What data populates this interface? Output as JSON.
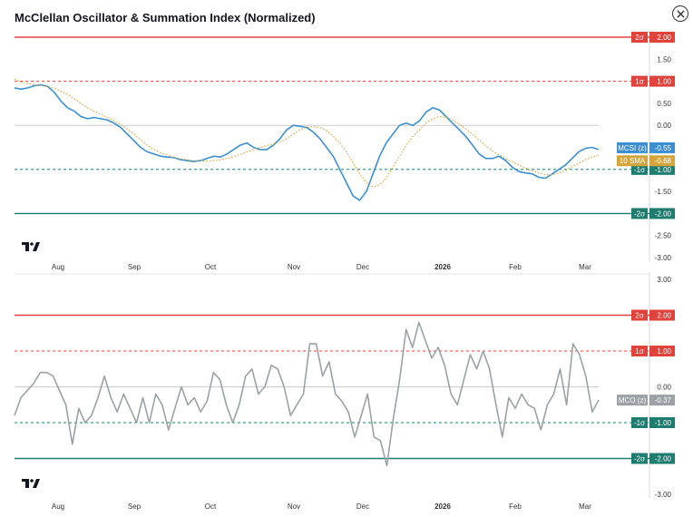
{
  "title": "McClellan Oscillator & Summation Index (Normalized)",
  "close_icon": "close-icon",
  "colors": {
    "red": "#e0433b",
    "teal": "#1e7d6f",
    "mcsi": "#3b8fd1",
    "sma": "#d4a53a",
    "mco": "#9aa2a6",
    "zero": "#cccccc"
  },
  "x_labels": [
    "Aug",
    "Sep",
    "Oct",
    "Nov",
    "Dec",
    "2026",
    "Feb",
    "Mar"
  ],
  "chart_data": [
    {
      "type": "line",
      "name": "McClellan Summation Index",
      "ylim": [
        -3.0,
        2.5
      ],
      "y_ticks": [
        "2.00",
        "1.50",
        "1.00",
        "0.50",
        "0.00",
        "-0.50",
        "-1.00",
        "-1.50",
        "-2.00",
        "-2.50",
        "-3.00"
      ],
      "bands": [
        {
          "label": "2σ",
          "value": 2.0,
          "text": "2.00",
          "color": "red",
          "style": "solid"
        },
        {
          "label": "1σ",
          "value": 1.0,
          "text": "1.00",
          "color": "red",
          "style": "dashed"
        },
        {
          "label": "-1σ",
          "value": -1.0,
          "text": "-1.00",
          "color": "teal",
          "style": "dashed"
        },
        {
          "label": "-2σ",
          "value": -2.0,
          "text": "-2.00",
          "color": "teal",
          "style": "solid"
        }
      ],
      "tags": [
        {
          "label": "MCSI (z)",
          "text": "-0.55",
          "value": -0.55,
          "color": "mcsi"
        },
        {
          "label": "10 SMA",
          "text": "-0.68",
          "value": -0.68,
          "color": "sma"
        }
      ],
      "series": [
        {
          "name": "MCSI (z)",
          "color": "mcsi",
          "style": "solid",
          "values": [
            0.85,
            0.82,
            0.85,
            0.9,
            0.92,
            0.88,
            0.75,
            0.55,
            0.4,
            0.32,
            0.2,
            0.15,
            0.18,
            0.15,
            0.12,
            0.05,
            -0.05,
            -0.2,
            -0.35,
            -0.5,
            -0.6,
            -0.65,
            -0.7,
            -0.72,
            -0.73,
            -0.78,
            -0.8,
            -0.82,
            -0.8,
            -0.75,
            -0.7,
            -0.72,
            -0.65,
            -0.55,
            -0.45,
            -0.4,
            -0.5,
            -0.55,
            -0.55,
            -0.45,
            -0.3,
            -0.1,
            0.0,
            -0.02,
            -0.05,
            -0.15,
            -0.3,
            -0.5,
            -0.7,
            -1.0,
            -1.3,
            -1.6,
            -1.7,
            -1.5,
            -1.1,
            -0.7,
            -0.4,
            -0.2,
            0.0,
            0.05,
            0.0,
            0.1,
            0.3,
            0.4,
            0.35,
            0.2,
            0.05,
            -0.1,
            -0.25,
            -0.45,
            -0.65,
            -0.75,
            -0.75,
            -0.7,
            -0.8,
            -0.95,
            -1.05,
            -1.08,
            -1.1,
            -1.18,
            -1.2,
            -1.1,
            -1.0,
            -0.9,
            -0.75,
            -0.6,
            -0.52,
            -0.5,
            -0.55
          ]
        },
        {
          "name": "10 SMA",
          "color": "sma",
          "style": "dotted",
          "values": [
            1.05,
            0.98,
            0.95,
            0.92,
            0.9,
            0.88,
            0.84,
            0.78,
            0.7,
            0.6,
            0.5,
            0.4,
            0.32,
            0.25,
            0.18,
            0.1,
            0.02,
            -0.08,
            -0.2,
            -0.32,
            -0.45,
            -0.55,
            -0.62,
            -0.68,
            -0.73,
            -0.76,
            -0.78,
            -0.8,
            -0.81,
            -0.81,
            -0.8,
            -0.78,
            -0.75,
            -0.71,
            -0.66,
            -0.6,
            -0.55,
            -0.5,
            -0.46,
            -0.42,
            -0.37,
            -0.3,
            -0.2,
            -0.1,
            -0.05,
            -0.03,
            -0.05,
            -0.12,
            -0.25,
            -0.4,
            -0.6,
            -0.85,
            -1.1,
            -1.3,
            -1.4,
            -1.35,
            -1.2,
            -0.95,
            -0.7,
            -0.45,
            -0.25,
            -0.1,
            0.05,
            0.15,
            0.2,
            0.18,
            0.12,
            0.03,
            -0.08,
            -0.2,
            -0.33,
            -0.46,
            -0.58,
            -0.67,
            -0.75,
            -0.83,
            -0.9,
            -0.97,
            -1.03,
            -1.08,
            -1.12,
            -1.12,
            -1.08,
            -1.02,
            -0.94,
            -0.86,
            -0.78,
            -0.72,
            -0.68
          ]
        }
      ]
    },
    {
      "type": "line",
      "name": "McClellan Oscillator",
      "ylim": [
        -3.0,
        3.0
      ],
      "y_ticks": [
        "3.00",
        "2.00",
        "1.00",
        "0.00",
        "-1.00",
        "-2.00",
        "-3.00"
      ],
      "bands": [
        {
          "label": "2σ",
          "value": 2.0,
          "text": "2.00",
          "color": "red",
          "style": "solid"
        },
        {
          "label": "1σ",
          "value": 1.0,
          "text": "1.00",
          "color": "red",
          "style": "dashed"
        },
        {
          "label": "-1σ",
          "value": -1.0,
          "text": "-1.00",
          "color": "teal",
          "style": "dashed"
        },
        {
          "label": "-2σ",
          "value": -2.0,
          "text": "-2.00",
          "color": "teal",
          "style": "solid"
        }
      ],
      "tags": [
        {
          "label": "MCO (z)",
          "text": "-0.37",
          "value": -0.37,
          "color": "mco"
        }
      ],
      "series": [
        {
          "name": "MCO (z)",
          "color": "mco",
          "style": "solid",
          "values": [
            -0.8,
            -0.3,
            -0.1,
            0.1,
            0.4,
            0.4,
            0.3,
            -0.1,
            -0.5,
            -1.6,
            -0.6,
            -1.0,
            -0.8,
            -0.3,
            0.3,
            -0.3,
            -0.7,
            -0.2,
            -0.6,
            -1.0,
            -0.3,
            -1.0,
            -0.2,
            -0.5,
            -1.2,
            -0.6,
            0.0,
            -0.5,
            -0.3,
            -0.7,
            -0.4,
            0.4,
            0.2,
            -0.5,
            -1.0,
            -0.5,
            0.3,
            0.5,
            -0.2,
            0.0,
            0.6,
            0.5,
            0.0,
            -0.8,
            -0.5,
            -0.2,
            1.2,
            1.2,
            0.3,
            0.7,
            -0.2,
            -0.4,
            -0.7,
            -1.4,
            -0.8,
            -0.2,
            -1.4,
            -1.5,
            -2.2,
            -0.9,
            0.2,
            1.6,
            1.1,
            1.8,
            1.3,
            0.8,
            1.1,
            0.6,
            -0.2,
            -0.5,
            0.2,
            0.9,
            0.5,
            1.0,
            0.5,
            -0.5,
            -1.4,
            -0.3,
            -0.6,
            -0.2,
            -0.5,
            -0.6,
            -1.2,
            -0.5,
            -0.2,
            0.5,
            -0.5,
            1.2,
            0.9,
            0.3,
            -0.7,
            -0.37
          ]
        }
      ]
    }
  ]
}
